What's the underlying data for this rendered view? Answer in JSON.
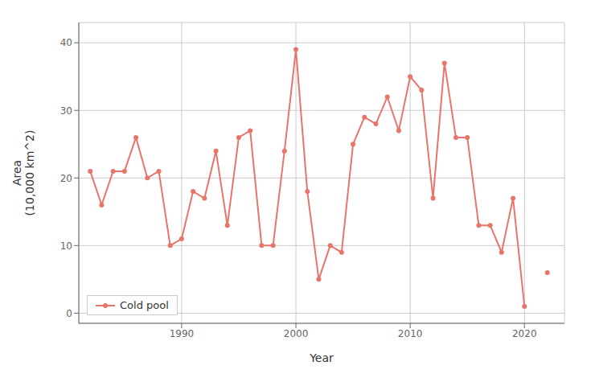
{
  "chart_data": {
    "type": "line",
    "xlabel": "Year",
    "ylabel": "Area\n(10,000 km^2)",
    "xlim": [
      1981,
      2023.5
    ],
    "ylim": [
      -1.5,
      43
    ],
    "xticks": [
      1990,
      2000,
      2010,
      2020
    ],
    "yticks": [
      0,
      10,
      20,
      30,
      40
    ],
    "grid": true,
    "legend": "lower left",
    "series": [
      {
        "name": "Cold pool",
        "color": "#E8756A",
        "marker": "circle",
        "line_style": "solid",
        "x": [
          1982,
          1983,
          1984,
          1985,
          1986,
          1987,
          1988,
          1989,
          1990,
          1991,
          1992,
          1993,
          1994,
          1995,
          1996,
          1997,
          1998,
          1999,
          2000,
          2001,
          2002,
          2003,
          2004,
          2005,
          2006,
          2007,
          2008,
          2009,
          2010,
          2011,
          2012,
          2013,
          2014,
          2015,
          2016,
          2017,
          2018,
          2019,
          2020
        ],
        "values": [
          21,
          16,
          21,
          21,
          26,
          20,
          21,
          10,
          11,
          18,
          17,
          24,
          13,
          26,
          27,
          10,
          10,
          24,
          39,
          18,
          5,
          10,
          9,
          25,
          29,
          28,
          32,
          27,
          35,
          33,
          17,
          37,
          26,
          26,
          13,
          13,
          9,
          17,
          1
        ]
      },
      {
        "color": "#E8756A",
        "marker": "circle",
        "line_style": "none",
        "x": [
          2022
        ],
        "values": [
          6
        ]
      }
    ]
  }
}
